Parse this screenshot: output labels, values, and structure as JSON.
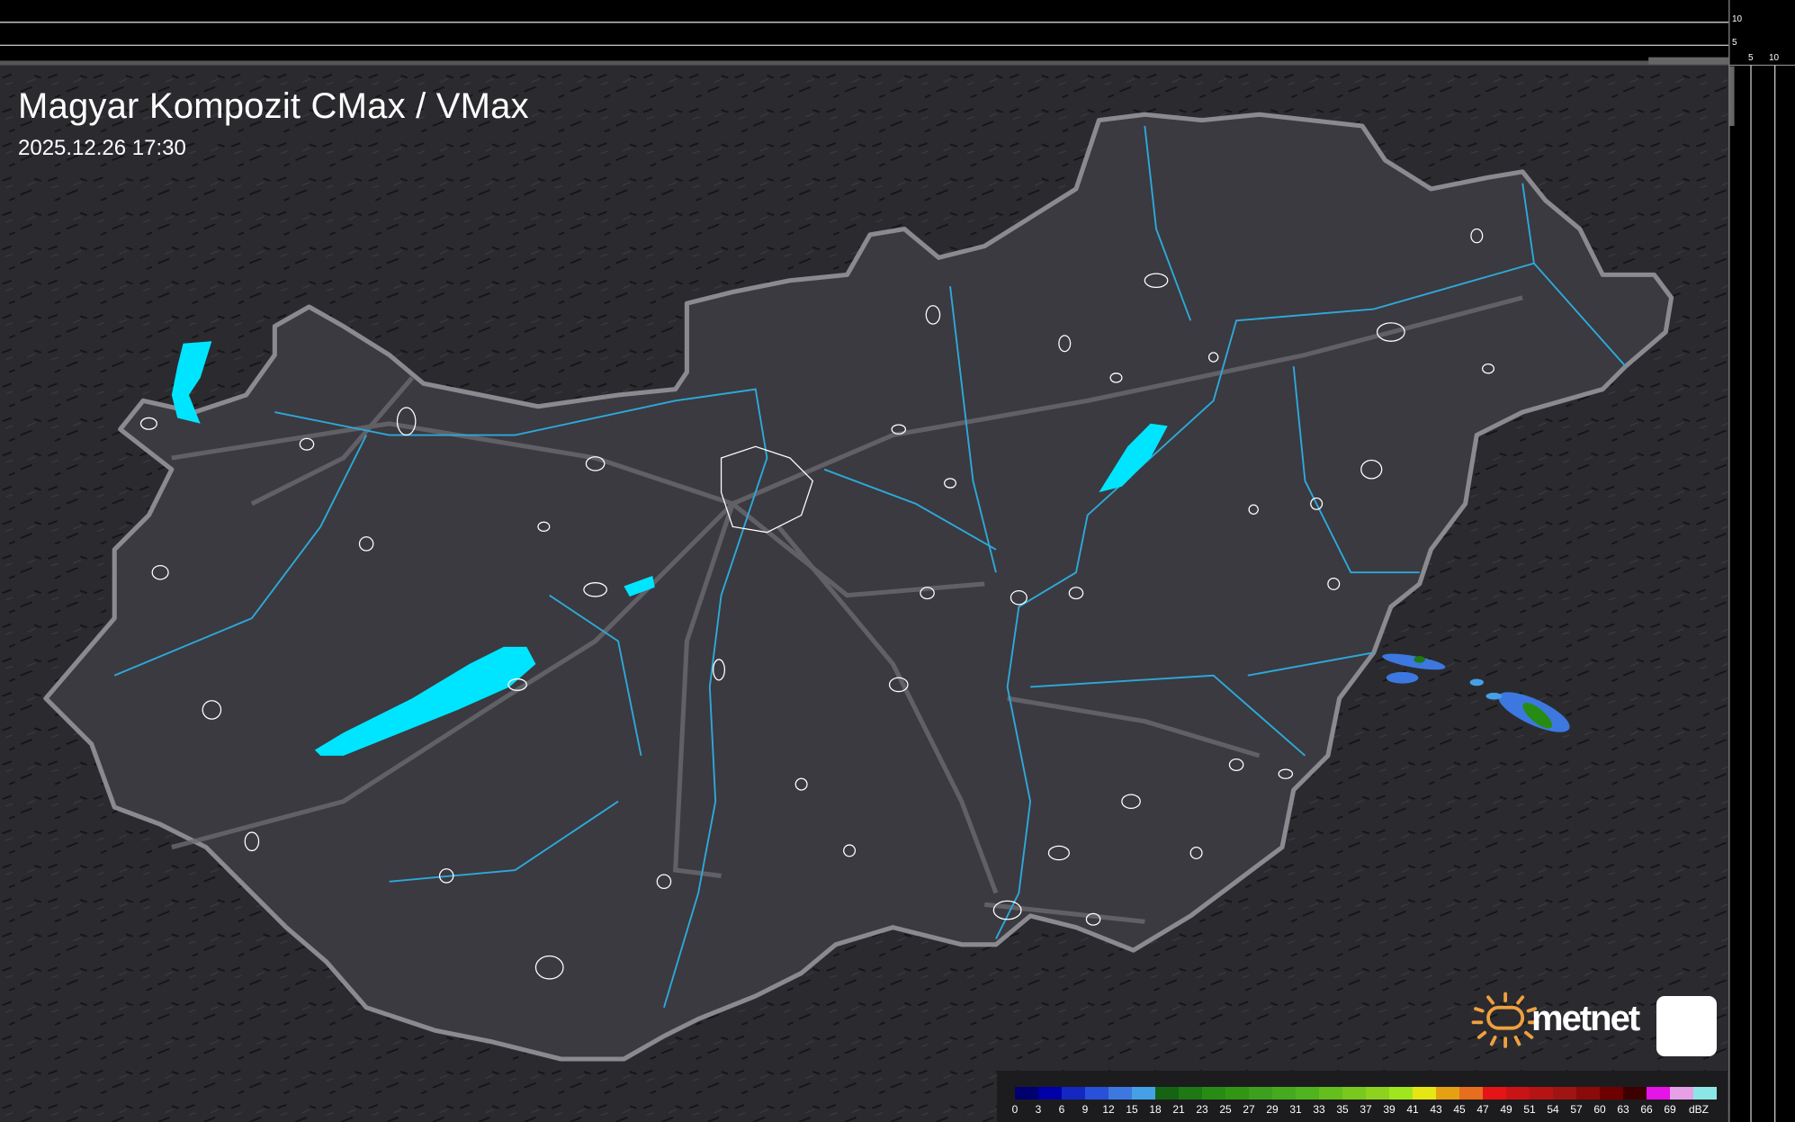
{
  "header": {
    "title": "Magyar Kompozit CMax / VMax",
    "timestamp": "2025.12.26 17:30"
  },
  "profile_axes": {
    "top_ticks": [
      "10",
      "5"
    ],
    "right_ticks": [
      "5",
      "10"
    ]
  },
  "legend": {
    "unit": "dBZ",
    "labels": [
      "0",
      "3",
      "6",
      "9",
      "12",
      "15",
      "18",
      "21",
      "23",
      "25",
      "27",
      "29",
      "31",
      "33",
      "35",
      "37",
      "39",
      "41",
      "43",
      "45",
      "47",
      "49",
      "51",
      "54",
      "57",
      "60",
      "63",
      "66",
      "69"
    ],
    "colors": [
      "#00006e",
      "#0000a8",
      "#1428c0",
      "#2850d8",
      "#3c78e0",
      "#46a0e6",
      "#146414",
      "#1e7814",
      "#288c14",
      "#329614",
      "#3ca01e",
      "#46aa1e",
      "#50b41e",
      "#64be1e",
      "#78c81e",
      "#8cd21e",
      "#a0e61e",
      "#e6e614",
      "#e6a014",
      "#e66e1e",
      "#e61414",
      "#c81414",
      "#b41414",
      "#a01414",
      "#8c0a0a",
      "#6e0000",
      "#3c0000",
      "#e614e6",
      "#e6a0e6",
      "#8ce6e6"
    ]
  },
  "branding": {
    "logo_text": "metnet",
    "sun_color": "#f0a040",
    "app_icon": "spiral-icon"
  },
  "colors": {
    "background": "#2a2a2e",
    "country_fill": "#3a3a40",
    "border": "#8a8a90",
    "rivers": "#2ea8d8",
    "lakes": "#00e5ff",
    "roads": "#6a6a70",
    "settlements": "#ffffff"
  }
}
